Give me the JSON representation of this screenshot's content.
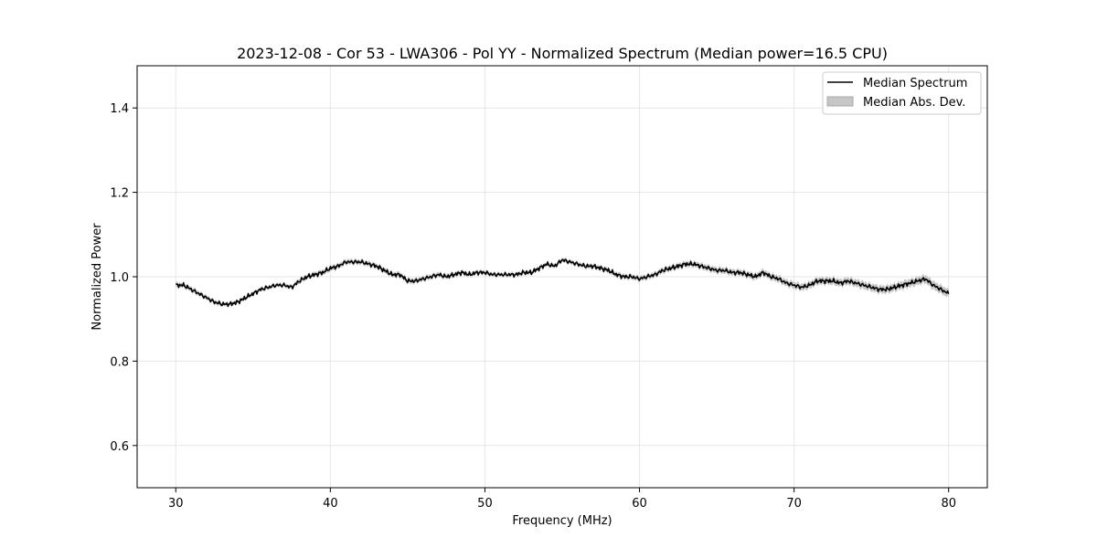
{
  "chart_data": {
    "type": "line",
    "title": "2023-12-08 - Cor 53 - LWA306 - Pol YY - Normalized Spectrum (Median power=16.5 CPU)",
    "xlabel": "Frequency (MHz)",
    "ylabel": "Normalized Power",
    "xlim": [
      27.5,
      82.5
    ],
    "ylim": [
      0.5,
      1.5
    ],
    "xticks": [
      30,
      40,
      50,
      60,
      70,
      80
    ],
    "yticks": [
      0.6,
      0.8,
      1.0,
      1.2,
      1.4
    ],
    "xtick_labels": [
      "30",
      "40",
      "50",
      "60",
      "70",
      "80"
    ],
    "ytick_labels": [
      "0.6",
      "0.8",
      "1.0",
      "1.2",
      "1.4"
    ],
    "grid": true,
    "legend_position": "top-right",
    "legend": [
      "Median Spectrum",
      "Median Abs. Dev."
    ],
    "series": [
      {
        "name": "Median Spectrum",
        "color": "#000000",
        "x": [
          30.0,
          30.5,
          31.0,
          31.5,
          32.0,
          32.5,
          33.0,
          33.5,
          34.0,
          34.5,
          35.0,
          35.5,
          36.0,
          36.5,
          37.0,
          37.5,
          38.0,
          38.5,
          39.0,
          39.5,
          40.0,
          40.5,
          41.0,
          41.5,
          42.0,
          42.5,
          43.0,
          43.5,
          44.0,
          44.5,
          45.0,
          45.5,
          46.0,
          46.5,
          47.0,
          47.5,
          48.0,
          48.5,
          49.0,
          49.5,
          50.0,
          50.5,
          51.0,
          51.5,
          52.0,
          52.5,
          53.0,
          53.5,
          54.0,
          54.5,
          55.0,
          55.5,
          56.0,
          56.5,
          57.0,
          57.5,
          58.0,
          58.5,
          59.0,
          59.5,
          60.0,
          60.5,
          61.0,
          61.5,
          62.0,
          62.5,
          63.0,
          63.5,
          64.0,
          64.5,
          65.0,
          65.5,
          66.0,
          66.5,
          67.0,
          67.5,
          68.0,
          68.5,
          69.0,
          69.5,
          70.0,
          70.5,
          71.0,
          71.5,
          72.0,
          72.5,
          73.0,
          73.5,
          74.0,
          74.5,
          75.0,
          75.5,
          76.0,
          76.5,
          77.0,
          77.5,
          78.0,
          78.5,
          79.0,
          79.5,
          80.0
        ],
        "values": [
          0.98,
          0.98,
          0.97,
          0.96,
          0.95,
          0.94,
          0.935,
          0.935,
          0.94,
          0.95,
          0.96,
          0.97,
          0.975,
          0.98,
          0.98,
          0.975,
          0.99,
          1.0,
          1.005,
          1.01,
          1.02,
          1.025,
          1.035,
          1.035,
          1.035,
          1.03,
          1.025,
          1.015,
          1.005,
          1.005,
          0.99,
          0.99,
          0.995,
          1.0,
          1.005,
          1.0,
          1.005,
          1.01,
          1.005,
          1.01,
          1.01,
          1.005,
          1.005,
          1.005,
          1.005,
          1.01,
          1.01,
          1.02,
          1.03,
          1.025,
          1.04,
          1.035,
          1.03,
          1.025,
          1.025,
          1.02,
          1.015,
          1.005,
          1.0,
          1.0,
          0.995,
          1.0,
          1.005,
          1.015,
          1.02,
          1.025,
          1.03,
          1.03,
          1.025,
          1.02,
          1.015,
          1.015,
          1.01,
          1.01,
          1.005,
          1.0,
          1.01,
          1.0,
          0.995,
          0.985,
          0.98,
          0.975,
          0.98,
          0.99,
          0.99,
          0.99,
          0.985,
          0.99,
          0.985,
          0.98,
          0.975,
          0.97,
          0.97,
          0.975,
          0.98,
          0.985,
          0.99,
          0.995,
          0.98,
          0.97,
          0.96
        ]
      }
    ],
    "band": {
      "name": "Median Abs. Dev.",
      "color": "#c6c6c6",
      "x": [
        30.0,
        35.0,
        40.0,
        45.0,
        50.0,
        55.0,
        60.0,
        65.0,
        70.0,
        75.0,
        80.0
      ],
      "half_width": [
        0.006,
        0.004,
        0.006,
        0.006,
        0.005,
        0.005,
        0.006,
        0.007,
        0.008,
        0.009,
        0.01
      ]
    }
  }
}
